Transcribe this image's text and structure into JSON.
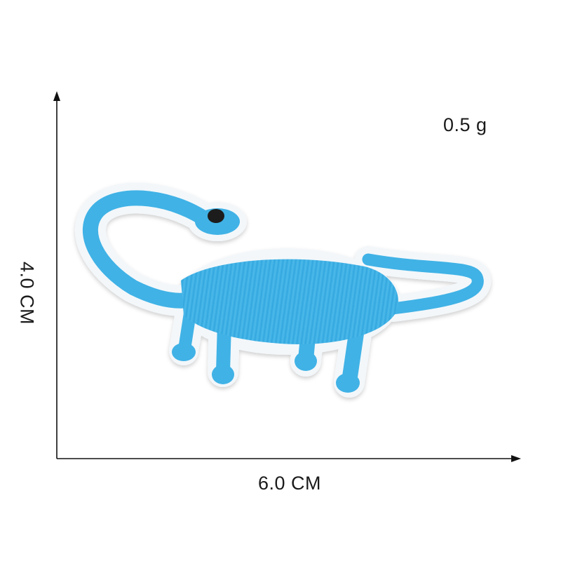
{
  "product": {
    "weight": "0.5 g",
    "width_dimension": "6.0 CM",
    "height_dimension": "4.0 CM"
  },
  "colors": {
    "patch_blue": "#3fb2e6",
    "patch_blue_dark": "#2a9bd3",
    "patch_border": "#f3f7fa",
    "eye": "#1c1c1c",
    "axis": "#111111"
  },
  "icons": {
    "subject": "dinosaur-patch-icon",
    "axis_arrows": "arrow-icon"
  }
}
